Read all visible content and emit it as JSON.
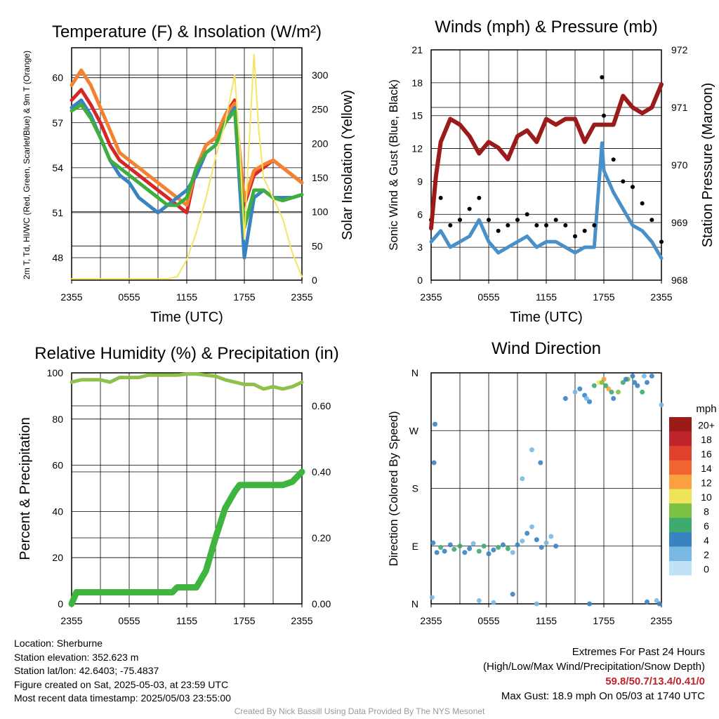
{
  "chart_data": [
    {
      "type": "line",
      "title": "Temperature (F) & Insolation (W/m²)",
      "xlabel": "Time (UTC)",
      "ylabel": "2m T, Td, HI/WC (Red, Green, Scarlet/Blue) & 9m T (Orange)",
      "y2label": "Solar Insolation (Yellow)",
      "x_ticks": [
        "2355",
        "0555",
        "1155",
        "1755",
        "2355"
      ],
      "ylim": [
        46.5,
        62.0
      ],
      "y_ticks": [
        48,
        51,
        54,
        57,
        60
      ],
      "y2lim": [
        0,
        340
      ],
      "y2_ticks": [
        0,
        50,
        100,
        150,
        200,
        250,
        300
      ],
      "grid": true,
      "series": [
        {
          "name": "2m T",
          "color": "#d62728",
          "axis": "left",
          "x": [
            0,
            1,
            2,
            3,
            4,
            5,
            6,
            7,
            8,
            9,
            10,
            11,
            12,
            13,
            14,
            15,
            16,
            17,
            18,
            19,
            20,
            21,
            22,
            23,
            24
          ],
          "values": [
            58.5,
            59.2,
            58.2,
            57.0,
            55.5,
            54.5,
            54.0,
            53.5,
            53.0,
            52.5,
            52.0,
            51.5,
            51.0,
            54.0,
            55.5,
            56.0,
            57.5,
            58.5,
            51.5,
            53.5,
            54.0,
            54.5,
            54.0,
            53.5,
            53.0
          ]
        },
        {
          "name": "9m T",
          "color": "#f58231",
          "axis": "left",
          "x": [
            0,
            1,
            2,
            3,
            4,
            5,
            6,
            7,
            8,
            9,
            10,
            11,
            12,
            13,
            14,
            15,
            16,
            17,
            18,
            19,
            20,
            21,
            22,
            23,
            24
          ],
          "values": [
            59.5,
            60.5,
            59.5,
            58.0,
            56.5,
            55.0,
            54.5,
            54.0,
            53.5,
            53.0,
            52.5,
            52.0,
            51.5,
            54.0,
            55.5,
            56.0,
            57.5,
            58.3,
            51.8,
            53.8,
            54.2,
            54.5,
            54.0,
            53.5,
            53.0
          ]
        },
        {
          "name": "HI/WC",
          "color": "#3a83c1",
          "axis": "left",
          "x": [
            0,
            1,
            2,
            3,
            4,
            5,
            6,
            7,
            8,
            9,
            10,
            11,
            12,
            13,
            14,
            15,
            16,
            17,
            18,
            19,
            20,
            21,
            22,
            23,
            24
          ],
          "values": [
            58.0,
            58.5,
            57.5,
            56.0,
            54.5,
            53.5,
            53.0,
            52.0,
            51.5,
            51.0,
            51.5,
            52.0,
            52.5,
            53.5,
            55.0,
            55.5,
            57.0,
            58.0,
            48.0,
            52.0,
            52.5,
            52.0,
            52.0,
            52.0,
            52.2
          ]
        },
        {
          "name": "2m Td",
          "color": "#3fae3f",
          "axis": "left",
          "x": [
            0,
            1,
            2,
            3,
            4,
            5,
            6,
            7,
            8,
            9,
            10,
            11,
            12,
            13,
            14,
            15,
            16,
            17,
            18,
            19,
            20,
            21,
            22,
            23,
            24
          ],
          "values": [
            57.8,
            58.2,
            57.3,
            56.0,
            54.5,
            54.0,
            53.5,
            53.0,
            52.5,
            52.0,
            51.5,
            51.5,
            52.0,
            54.0,
            55.0,
            55.5,
            57.0,
            57.8,
            50.0,
            52.5,
            52.5,
            52.0,
            51.8,
            52.0,
            52.2
          ]
        },
        {
          "name": "Solar Insolation",
          "color": "#f7e463",
          "axis": "right",
          "x": [
            0,
            2,
            4,
            6,
            8,
            10,
            11,
            12,
            13,
            14,
            15,
            16,
            17,
            17.5,
            18,
            18.5,
            19,
            19.5,
            20,
            21,
            22,
            23,
            24
          ],
          "values": [
            2,
            2,
            2,
            2,
            2,
            2,
            5,
            30,
            70,
            120,
            180,
            230,
            300,
            200,
            60,
            200,
            330,
            220,
            150,
            120,
            90,
            40,
            5
          ]
        }
      ]
    },
    {
      "type": "line",
      "title": "Winds (mph) & Pressure (mb)",
      "xlabel": "Time (UTC)",
      "ylabel": "Sonic Wind & Gust (Blue, Black)",
      "y2label": "Station Pressure (Maroon)",
      "x_ticks": [
        "2355",
        "0555",
        "1155",
        "1755",
        "2355"
      ],
      "ylim": [
        0,
        21
      ],
      "y_ticks": [
        0,
        3,
        6,
        9,
        12,
        15,
        18,
        21
      ],
      "y2lim": [
        968,
        972
      ],
      "y2_ticks": [
        968,
        969,
        970,
        971,
        972
      ],
      "grid": true,
      "series": [
        {
          "name": "Sonic Wind",
          "color": "#4a90c8",
          "axis": "left",
          "x": [
            0,
            1,
            2,
            3,
            4,
            5,
            6,
            7,
            8,
            9,
            10,
            11,
            12,
            13,
            14,
            15,
            16,
            17,
            17.8,
            18,
            19,
            20,
            21,
            22,
            23,
            24
          ],
          "values": [
            3.5,
            4.5,
            3.0,
            3.5,
            4.0,
            5.5,
            3.5,
            2.5,
            3.0,
            3.5,
            4.0,
            3.0,
            3.5,
            3.5,
            3.0,
            2.5,
            3.0,
            3.0,
            12.5,
            10.0,
            8.0,
            6.5,
            5.0,
            4.5,
            3.5,
            2.0
          ]
        },
        {
          "name": "Gust",
          "color": "#000000",
          "axis": "left",
          "x": [
            0,
            1,
            2,
            3,
            4,
            5,
            6,
            7,
            8,
            9,
            10,
            11,
            12,
            13,
            14,
            15,
            16,
            17,
            17.8,
            18,
            19,
            20,
            21,
            22,
            23,
            24
          ],
          "values": [
            5.5,
            7.5,
            5.0,
            5.5,
            6.5,
            7.5,
            5.5,
            4.5,
            5.0,
            5.5,
            6.0,
            5.0,
            5.0,
            5.5,
            5.0,
            4.0,
            4.5,
            5.0,
            18.5,
            15.0,
            11.0,
            9.0,
            8.5,
            7.0,
            5.5,
            3.5
          ]
        },
        {
          "name": "Station Pressure",
          "color": "#9b1b1b",
          "axis": "right",
          "x": [
            0,
            0.5,
            1,
            2,
            3,
            4,
            5,
            6,
            7,
            8,
            9,
            10,
            11,
            12,
            13,
            14,
            15,
            16,
            17,
            18,
            19,
            20,
            21,
            22,
            23,
            24
          ],
          "values": [
            968.9,
            969.8,
            970.4,
            970.8,
            970.7,
            970.5,
            970.2,
            970.4,
            970.3,
            970.1,
            970.5,
            970.6,
            970.4,
            970.8,
            970.7,
            970.8,
            970.8,
            970.4,
            970.7,
            970.7,
            970.7,
            971.2,
            971.0,
            970.9,
            971.0,
            971.4
          ]
        }
      ]
    },
    {
      "type": "line",
      "title": "Relative Humidity (%) & Precipitation (in)",
      "xlabel": "",
      "ylabel": "Percent & Precipitation",
      "x_ticks": [
        "2355",
        "0555",
        "1155",
        "1755",
        "2355"
      ],
      "ylim": [
        0,
        100
      ],
      "y_ticks": [
        0,
        20,
        40,
        60,
        80,
        100
      ],
      "y2lim": [
        0,
        0.7
      ],
      "y2_ticks": [
        "0.00",
        "0.20",
        "0.40",
        "0.60"
      ],
      "grid": true,
      "series": [
        {
          "name": "Relative Humidity",
          "color": "#8fc14a",
          "axis": "left",
          "x": [
            0,
            1,
            2,
            3,
            4,
            5,
            6,
            7,
            8,
            9,
            10,
            11,
            12,
            13,
            14,
            15,
            16,
            17,
            18,
            19,
            20,
            21,
            22,
            23,
            24
          ],
          "values": [
            96,
            97,
            97,
            97,
            96,
            98,
            98,
            98,
            99,
            99,
            99,
            99,
            99.5,
            99.5,
            99,
            98.5,
            97,
            96,
            95,
            95,
            93,
            94,
            93,
            94,
            96
          ]
        },
        {
          "name": "Precipitation",
          "color": "#3fb43f",
          "axis": "right",
          "x": [
            0,
            0.5,
            1,
            3,
            6,
            9,
            10.5,
            11,
            12,
            13,
            14,
            15,
            16,
            17,
            17.5,
            18,
            20,
            22,
            23,
            24
          ],
          "values": [
            0.0,
            0.035,
            0.035,
            0.035,
            0.035,
            0.035,
            0.035,
            0.05,
            0.05,
            0.05,
            0.1,
            0.2,
            0.29,
            0.34,
            0.36,
            0.36,
            0.36,
            0.36,
            0.37,
            0.4
          ]
        }
      ]
    },
    {
      "type": "scatter",
      "title": "Wind Direction",
      "xlabel": "",
      "ylabel": "Direction (Colored By Speed)",
      "x_ticks": [
        "2355",
        "0555",
        "1155",
        "1755",
        "2355"
      ],
      "y_ticks": [
        "N",
        "E",
        "S",
        "W",
        "N"
      ],
      "ylim": [
        0,
        360
      ],
      "grid": true,
      "legend": {
        "title": "mph",
        "labels": [
          "20+",
          "18",
          "16",
          "14",
          "12",
          "10",
          "8",
          "6",
          "4",
          "2",
          "0"
        ],
        "colors": [
          "#9b1b1b",
          "#c0242c",
          "#e0402c",
          "#f06430",
          "#f9a040",
          "#ede45a",
          "#7cc044",
          "#3faa70",
          "#3a83c1",
          "#7ab8e4",
          "#bfe3f5"
        ]
      },
      "points": {
        "x": [
          0.2,
          0.6,
          1.0,
          1.4,
          2.0,
          2.4,
          3.0,
          3.5,
          4.0,
          4.4,
          5.0,
          5.5,
          6.0,
          6.5,
          7.0,
          7.5,
          8.0,
          8.5,
          9.0,
          9.5,
          10.0,
          10.5,
          11.0,
          11.5,
          12.0,
          12.5,
          13.0,
          0.3,
          0.4,
          9.5,
          10.5,
          11.4,
          14.0,
          15.0,
          16.0,
          16.5,
          17.0,
          17.5,
          18.0,
          18.5,
          19.0,
          19.5,
          20.0,
          20.5,
          21.0,
          21.5,
          22.0,
          22.5,
          23.0,
          23.5,
          24.0,
          15.5,
          16.2,
          17.8,
          18.2,
          18.8,
          20.3,
          21.2,
          22.2,
          0.1,
          5.0,
          6.5,
          8.5,
          11.0,
          16.5,
          22.5,
          23.8
        ],
        "y": [
          95,
          80,
          88,
          82,
          92,
          85,
          90,
          80,
          86,
          94,
          82,
          90,
          78,
          84,
          88,
          92,
          86,
          80,
          92,
          98,
          110,
          120,
          100,
          88,
          95,
          105,
          90,
          220,
          280,
          195,
          240,
          220,
          320,
          330,
          325,
          315,
          340,
          345,
          350,
          335,
          320,
          330,
          345,
          350,
          355,
          340,
          330,
          345,
          355,
          5,
          310,
          335,
          320,
          345,
          340,
          330,
          350,
          345,
          355,
          10,
          5,
          2,
          15,
          0,
          0,
          3,
          0
        ],
        "speed": [
          4,
          3,
          6,
          4,
          3,
          5,
          6,
          3,
          4,
          2,
          5,
          6,
          3,
          4,
          6,
          3,
          5,
          2,
          4,
          2,
          3,
          2,
          4,
          3,
          2,
          2,
          3,
          4,
          4,
          2,
          2,
          3,
          4,
          2,
          4,
          3,
          5,
          10,
          12,
          11,
          4,
          8,
          6,
          7,
          3,
          4,
          5,
          4,
          3,
          2,
          2,
          3,
          2,
          8,
          6,
          6,
          4,
          3,
          2,
          2,
          2,
          2,
          4,
          2,
          3,
          4,
          3
        ]
      }
    }
  ],
  "info": {
    "location": "Location: Sherburne",
    "elevation": "Station elevation: 352.623 m",
    "latlon": "Station lat/lon: 42.6403; -75.4837",
    "created": "Figure created on Sat, 2025-05-03, at 23:59 UTC",
    "recent": "Most recent data timestamp: 2025/05/03 23:55:00"
  },
  "extremes": {
    "title": "Extremes For Past 24 Hours",
    "subtitle": "(High/Low/Max Wind/Precipitation/Snow Depth)",
    "values": "59.8/50.7/13.4/0.41/0",
    "gust": "Max Gust: 18.9 mph On 05/03 at 1740 UTC"
  },
  "credit": "Created By Nick Bassill Using Data Provided By The NYS Mesonet"
}
